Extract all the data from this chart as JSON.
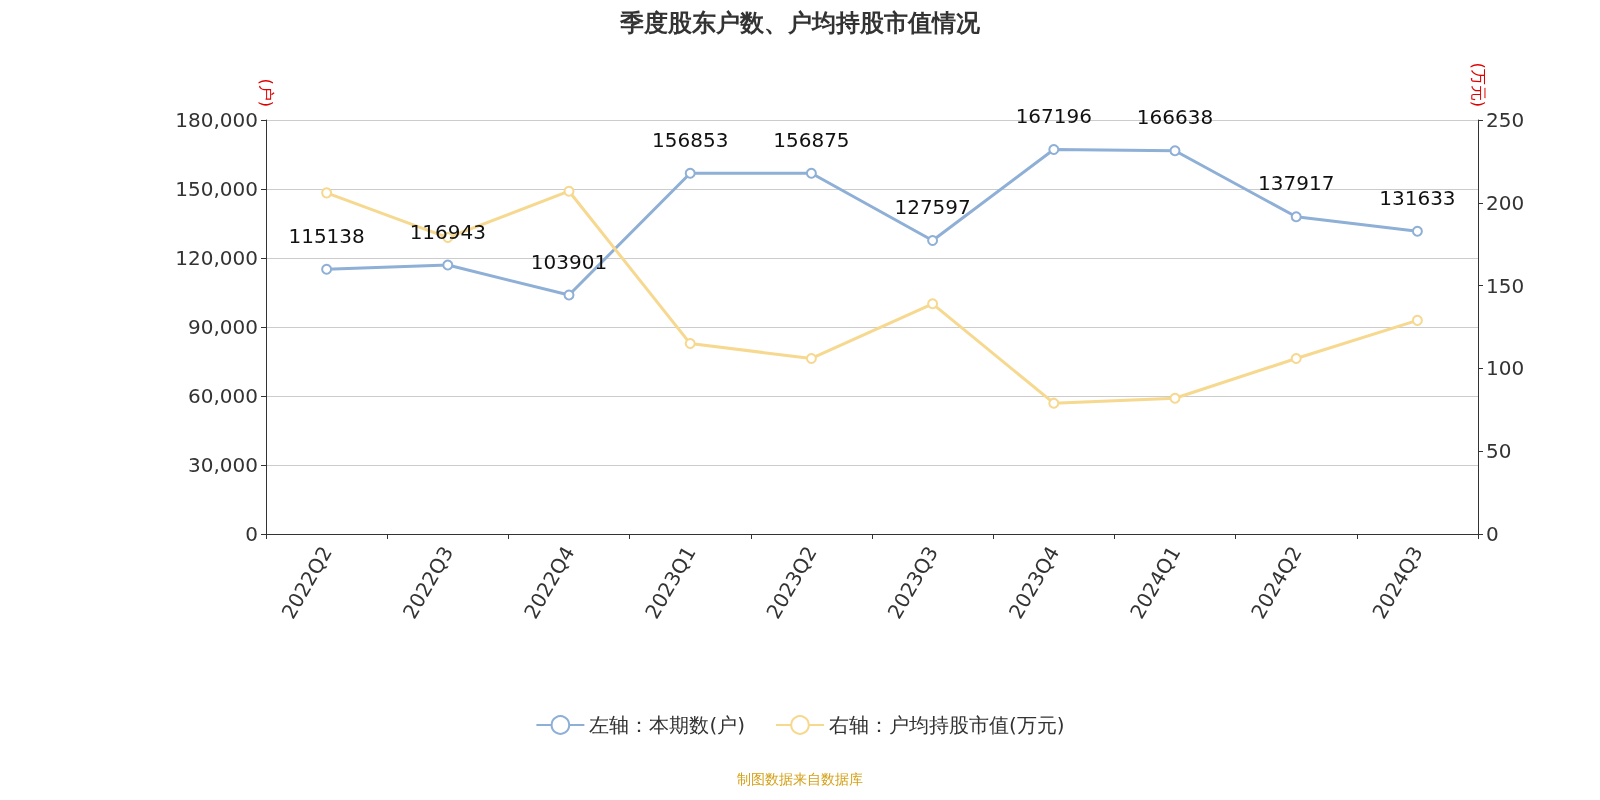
{
  "chart_data": {
    "type": "line",
    "title": "季度股东户数、户均持股市值情况",
    "categories": [
      "2022Q2",
      "2022Q3",
      "2022Q4",
      "2023Q1",
      "2023Q2",
      "2023Q3",
      "2023Q4",
      "2024Q1",
      "2024Q2",
      "2024Q3"
    ],
    "series": [
      {
        "name": "左轴：本期数(户)",
        "color": "#8eafd6",
        "values": [
          115138,
          116943,
          103901,
          156853,
          156875,
          127597,
          167196,
          166638,
          137917,
          131633
        ],
        "data_labels": true
      },
      {
        "name": "右轴：户均持股市值(万元)",
        "color": "#f6d88f",
        "axis": "y2",
        "values": [
          206,
          179,
          207,
          115,
          106,
          139,
          79,
          82,
          106,
          129
        ]
      }
    ],
    "ylabel": "(户)",
    "y2label": "(万元)",
    "ylim": [
      0,
      180000
    ],
    "yticks": [
      0,
      {
        "value": 30000,
        "label": "30,000"
      },
      {
        "value": 60000,
        "label": "60,000"
      },
      {
        "value": 90000,
        "label": "90,000"
      },
      {
        "value": 120000,
        "label": "120,000"
      },
      {
        "value": 150000,
        "label": "150,000"
      },
      {
        "value": 180000,
        "label": "180,000"
      }
    ],
    "y2lim": [
      0,
      250
    ],
    "y2ticks": [
      0,
      50,
      100,
      150,
      200,
      250
    ],
    "grid": "y",
    "legend": "bottom",
    "marker": "circle",
    "line_style": "solid",
    "annotations": [
      "制图数据来自数据库"
    ]
  }
}
